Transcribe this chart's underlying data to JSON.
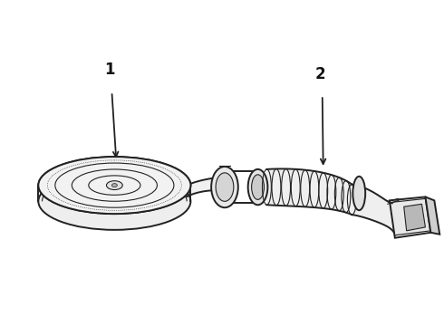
{
  "background_color": "#ffffff",
  "line_color": "#222222",
  "label_color": "#111111",
  "label1": "1",
  "label2": "2",
  "fig_width": 4.9,
  "fig_height": 3.6,
  "dpi": 100,
  "lw_main": 1.4,
  "lw_thin": 0.8,
  "lw_thick": 2.0
}
